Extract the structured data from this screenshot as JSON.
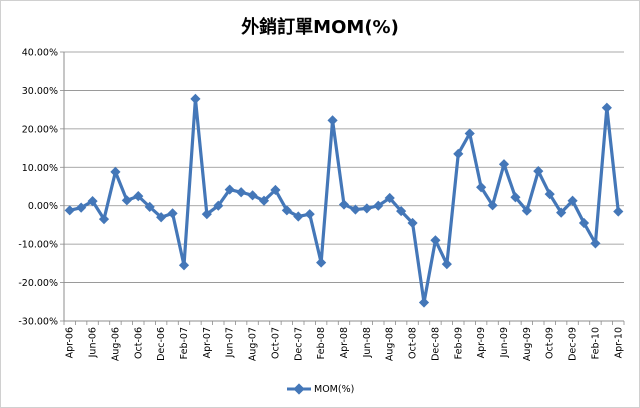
{
  "chart_data": {
    "type": "line",
    "title": "外銷訂單MOM(%)",
    "xlabel": "",
    "ylabel": "",
    "ylim": [
      -0.3,
      0.4
    ],
    "y_ticks": [
      0.4,
      0.3,
      0.2,
      0.1,
      0.0,
      -0.1,
      -0.2,
      -0.3
    ],
    "y_tick_labels": [
      "40.00%",
      "30.00%",
      "20.00%",
      "10.00%",
      "0.00%",
      "-10.00%",
      "-20.00%",
      "-30.00%"
    ],
    "grid": "horizontal",
    "legend_position": "bottom",
    "color": "#4477B8",
    "x": [
      "Apr-06",
      "May-06",
      "Jun-06",
      "Jul-06",
      "Aug-06",
      "Sep-06",
      "Oct-06",
      "Nov-06",
      "Dec-06",
      "Jan-07",
      "Feb-07",
      "Mar-07",
      "Apr-07",
      "May-07",
      "Jun-07",
      "Jul-07",
      "Aug-07",
      "Sep-07",
      "Oct-07",
      "Nov-07",
      "Dec-07",
      "Jan-08",
      "Feb-08",
      "Mar-08",
      "Apr-08",
      "May-08",
      "Jun-08",
      "Jul-08",
      "Aug-08",
      "Sep-08",
      "Oct-08",
      "Nov-08",
      "Dec-08",
      "Jan-09",
      "Feb-09",
      "Mar-09",
      "Apr-09",
      "May-09",
      "Jun-09",
      "Jul-09",
      "Aug-09",
      "Sep-09",
      "Oct-09",
      "Nov-09",
      "Dec-09",
      "Jan-10",
      "Feb-10",
      "Mar-10",
      "Apr-10"
    ],
    "x_tick_labels": [
      "Apr-06",
      "Jun-06",
      "Aug-06",
      "Oct-06",
      "Dec-06",
      "Feb-07",
      "Apr-07",
      "Jun-07",
      "Aug-07",
      "Oct-07",
      "Dec-07",
      "Feb-08",
      "Apr-08",
      "Jun-08",
      "Aug-08",
      "Oct-08",
      "Dec-08",
      "Feb-09",
      "Apr-09",
      "Jun-09",
      "Aug-09",
      "Oct-09",
      "Dec-09",
      "Feb-10",
      "Apr-10"
    ],
    "series": [
      {
        "name": "MOM(%)",
        "values": [
          -0.012,
          -0.005,
          0.012,
          -0.035,
          0.088,
          0.014,
          0.025,
          -0.003,
          -0.03,
          -0.02,
          -0.155,
          0.278,
          -0.022,
          0.0,
          0.042,
          0.035,
          0.027,
          0.013,
          0.041,
          -0.012,
          -0.028,
          -0.022,
          -0.148,
          0.222,
          0.003,
          -0.01,
          -0.007,
          0.0,
          0.02,
          -0.014,
          -0.045,
          -0.252,
          -0.09,
          -0.152,
          0.135,
          0.188,
          0.048,
          0.001,
          0.108,
          0.022,
          -0.013,
          0.09,
          0.03,
          -0.018,
          0.013,
          -0.045,
          -0.098,
          0.255,
          -0.015
        ]
      }
    ]
  }
}
